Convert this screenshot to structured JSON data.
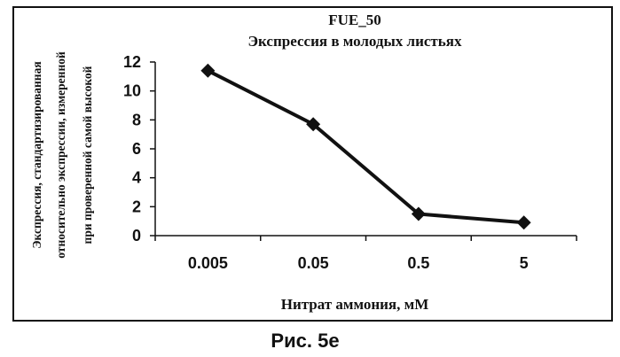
{
  "chart_data": {
    "type": "line",
    "title": "FUE_50",
    "subtitle": "Экспрессия в молодых листьях",
    "ylabel": [
      "Экспрессия, стандартизированная",
      "относительно экспрессии, измеренной",
      "при проверенной самой высокой"
    ],
    "xlabel": "Нитрат аммония, мМ",
    "categories": [
      "0.005",
      "0.05",
      "0.5",
      "5"
    ],
    "series": [
      {
        "values": [
          11.4,
          7.7,
          1.5,
          0.9
        ]
      }
    ],
    "ylim": [
      0,
      12
    ],
    "yticks": [
      0,
      2,
      4,
      6,
      8,
      10,
      12
    ],
    "grid": false,
    "legend": "none",
    "marker": "diamond",
    "line_color": "#111111"
  },
  "caption": "Рис. 5е"
}
